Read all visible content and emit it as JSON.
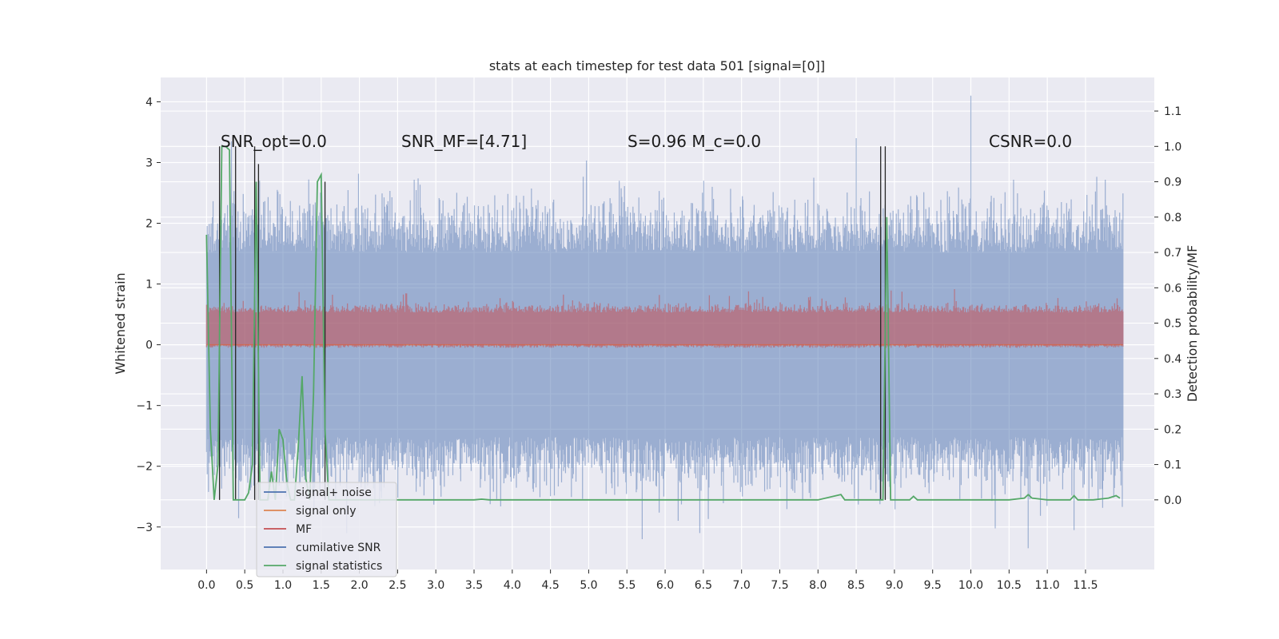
{
  "chart_data": {
    "type": "line",
    "title": "stats at each timestep for test data 501 [signal=[0]]",
    "xlabel": "",
    "ylabel_left": "Whitened strain",
    "ylabel_right": "Detection probability/MF",
    "xlim": [
      -0.6,
      12.4
    ],
    "ylim_left": [
      -3.7,
      4.4
    ],
    "ylim_right": [
      -0.197,
      1.195
    ],
    "x_ticks": [
      0.0,
      0.5,
      1.0,
      1.5,
      2.0,
      2.5,
      3.0,
      3.5,
      4.0,
      4.5,
      5.0,
      5.5,
      6.0,
      6.5,
      7.0,
      7.5,
      8.0,
      8.5,
      9.0,
      9.5,
      10.0,
      10.5,
      11.0,
      11.5
    ],
    "x_tick_labels": [
      "0.0",
      "0.5",
      "1.0",
      "1.5",
      "2.0",
      "2.5",
      "3.0",
      "3.5",
      "4.0",
      "4.5",
      "5.0",
      "5.5",
      "6.0",
      "6.5",
      "7.0",
      "7.5",
      "8.0",
      "8.5",
      "9.0",
      "9.5",
      "10.0",
      "10.5",
      "11.0",
      "11.5"
    ],
    "y_ticks_left": [
      -3,
      -2,
      -1,
      0,
      1,
      2,
      3,
      4
    ],
    "y_tick_labels_left": [
      "−3",
      "−2",
      "−1",
      "0",
      "1",
      "2",
      "3",
      "4"
    ],
    "y_ticks_right": [
      0.0,
      0.1,
      0.2,
      0.3,
      0.4,
      0.5,
      0.6,
      0.7,
      0.8,
      0.9,
      1.0,
      1.1
    ],
    "y_tick_labels_right": [
      "0.0",
      "0.1",
      "0.2",
      "0.3",
      "0.4",
      "0.5",
      "0.6",
      "0.7",
      "0.8",
      "0.9",
      "1.0",
      "1.1"
    ],
    "grid": true,
    "legend_placement": "lower-left",
    "annotations": [
      {
        "text": "SNR_opt=0.0",
        "x": 0.2,
        "y": 1.0
      },
      {
        "text": "SNR_MF=[4.71]",
        "x": 2.6,
        "y": 1.0
      },
      {
        "text": "S=0.96   M_c=0.0",
        "x": 5.6,
        "y": 1.0
      },
      {
        "text": "CSNR=0.0",
        "x": 10.4,
        "y": 1.0
      }
    ],
    "series": [
      {
        "name": "signal+ noise",
        "axis": "left",
        "color": "#4c72b0",
        "style": "noise band",
        "x_range": [
          0.0,
          11.99
        ],
        "typical_range": [
          -1.6,
          1.6
        ],
        "extreme_range": [
          -3.3,
          4.1
        ],
        "peaks": [
          [
            10.0,
            4.1
          ],
          [
            8.5,
            3.4
          ],
          [
            5.4,
            2.7
          ],
          [
            10.75,
            -3.35
          ],
          [
            5.7,
            -3.2
          ],
          [
            11.35,
            -3.05
          ]
        ]
      },
      {
        "name": "signal only",
        "axis": "left",
        "color": "#dd8452",
        "x_range": [
          0.0,
          11.99
        ],
        "values_constant": 0.0
      },
      {
        "name": "MF",
        "axis": "right",
        "color": "#c44e52",
        "style": "noise band",
        "x_range": [
          0.0,
          11.99
        ],
        "typical_range": [
          0.43,
          0.54
        ],
        "extreme_range": [
          0.43,
          0.61
        ]
      },
      {
        "name": "cumilative SNR",
        "axis": "right",
        "color": "#4c72b0",
        "x": [],
        "values": []
      },
      {
        "name": "signal statistics",
        "axis": "right",
        "color": "#55a868",
        "x": [
          0.0,
          0.05,
          0.1,
          0.15,
          0.2,
          0.25,
          0.3,
          0.35,
          0.4,
          0.45,
          0.5,
          0.55,
          0.6,
          0.65,
          0.7,
          0.75,
          0.8,
          0.85,
          0.9,
          0.95,
          1.0,
          1.05,
          1.1,
          1.15,
          1.2,
          1.25,
          1.3,
          1.35,
          1.4,
          1.45,
          1.5,
          1.55,
          1.6,
          1.65,
          1.7,
          2.0,
          3.0,
          3.5,
          3.6,
          3.7,
          4.0,
          5.0,
          6.0,
          7.0,
          8.0,
          8.3,
          8.35,
          8.4,
          8.8,
          8.85,
          8.9,
          8.95,
          9.0,
          9.1,
          9.2,
          9.25,
          9.3,
          9.5,
          10.0,
          10.5,
          10.7,
          10.75,
          10.8,
          11.0,
          11.3,
          11.35,
          11.4,
          11.6,
          11.8,
          11.9,
          11.95
        ],
        "values": [
          0.75,
          0.2,
          0.0,
          0.1,
          1.0,
          1.0,
          0.99,
          0.0,
          0.0,
          0.0,
          0.0,
          0.02,
          0.1,
          0.9,
          0.0,
          0.0,
          0.0,
          0.08,
          0.0,
          0.2,
          0.17,
          0.05,
          0.0,
          0.0,
          0.15,
          0.35,
          0.06,
          0.0,
          0.3,
          0.9,
          0.92,
          0.2,
          0.0,
          0.0,
          0.0,
          0.0,
          0.0,
          0.0,
          0.002,
          0.0,
          0.0,
          0.0,
          0.0,
          0.0,
          0.0,
          0.015,
          0.0,
          0.0,
          0.0,
          0.0,
          0.8,
          0.0,
          0.0,
          0.0,
          0.0,
          0.01,
          0.0,
          0.0,
          0.0,
          0.0,
          0.005,
          0.015,
          0.005,
          0.0,
          0.0,
          0.012,
          0.0,
          0.0,
          0.005,
          0.012,
          0.005
        ]
      }
    ],
    "vertical_lines": {
      "color": "#262626",
      "axis": "right",
      "lines": [
        [
          0.17,
          0.0,
          1.0
        ],
        [
          0.38,
          0.0,
          1.0
        ],
        [
          0.63,
          0.0,
          1.0
        ],
        [
          0.68,
          0.0,
          0.95
        ],
        [
          1.55,
          0.0,
          0.9
        ],
        [
          8.82,
          0.0,
          1.0
        ],
        [
          8.88,
          0.0,
          1.0
        ]
      ]
    }
  }
}
